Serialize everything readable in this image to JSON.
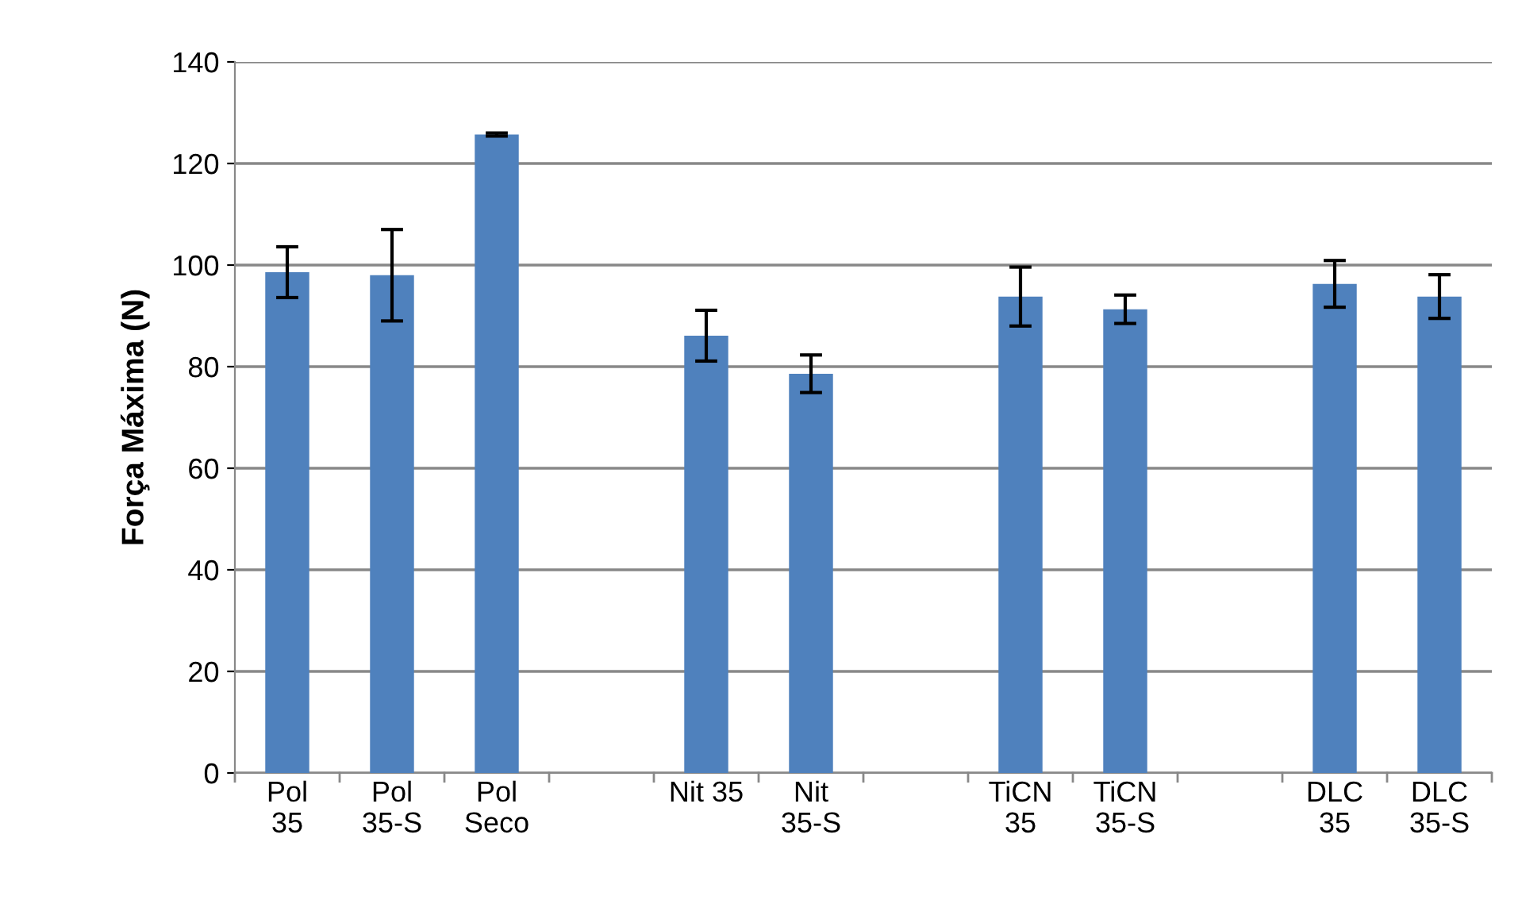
{
  "chart_data": {
    "type": "bar",
    "ylabel": "Força Máxima (N)",
    "categories": [
      "Pol\n35",
      "Pol\n35-S",
      "Pol\nSeco",
      null,
      "Nit 35",
      "Nit\n35-S",
      null,
      "TiCN\n35",
      "TiCN\n35-S",
      null,
      "DLC\n35",
      "DLC\n35-S"
    ],
    "values": [
      98.6,
      98,
      125.7,
      null,
      86.1,
      78.6,
      null,
      93.8,
      91.3,
      null,
      96.3,
      93.8
    ],
    "errors": [
      5,
      9,
      0.3,
      null,
      5,
      3.7,
      null,
      5.8,
      2.8,
      null,
      4.6,
      4.3
    ],
    "color": "#4f81bd",
    "ylim": [
      0,
      140
    ],
    "yticks": [
      0,
      20,
      40,
      60,
      80,
      100,
      120,
      140
    ],
    "grid": "y",
    "legend": false
  }
}
